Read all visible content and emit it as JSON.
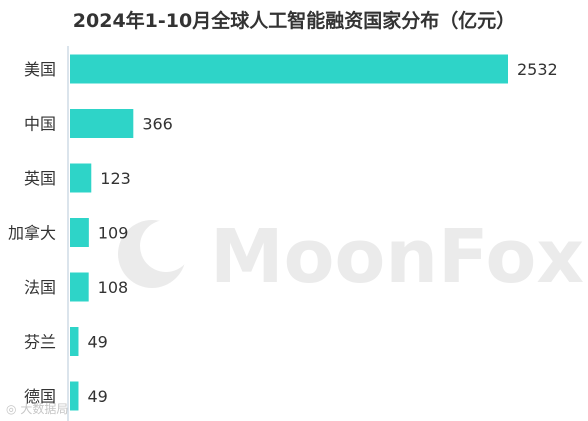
{
  "chart_data": {
    "type": "bar",
    "orientation": "horizontal",
    "title": "2024年1-10月全球人工智能融资国家分布（亿元）",
    "categories": [
      "美国",
      "中国",
      "英国",
      "加拿大",
      "法国",
      "芬兰",
      "德国"
    ],
    "values": [
      2532,
      366,
      123,
      109,
      108,
      49,
      49
    ],
    "xlabel": "",
    "ylabel": "",
    "xlim": [
      0,
      2532
    ],
    "grid": false,
    "legend": "none",
    "bar_color": "#2ed4c8"
  },
  "watermark": {
    "text": "MoonFox",
    "corner_text": "大数据局"
  },
  "colors": {
    "bar": "#2ed4c8",
    "axis": "#b7c8d8",
    "watermark": "#ebebeb"
  }
}
